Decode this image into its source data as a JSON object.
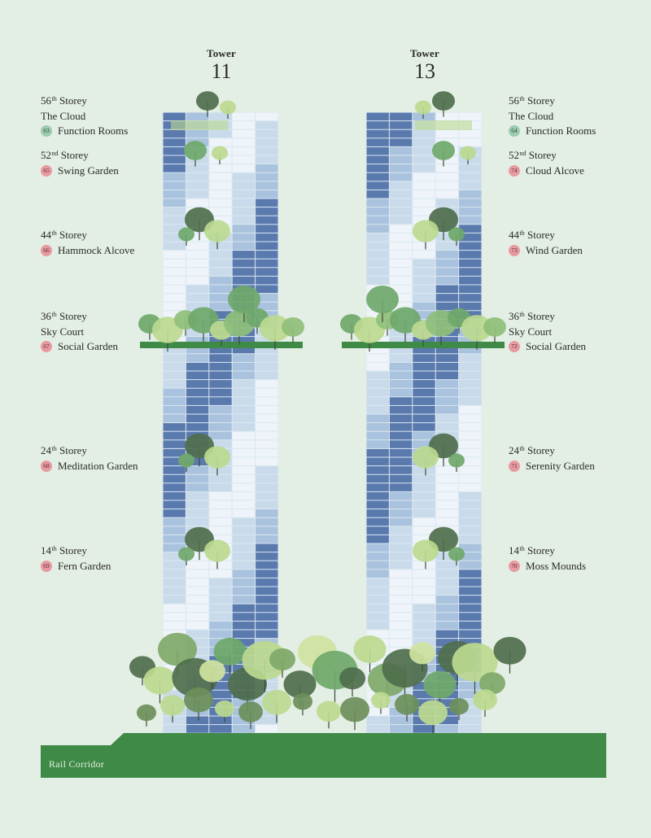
{
  "towers": {
    "left": {
      "label": "Tower",
      "number": "11"
    },
    "right": {
      "label": "Tower",
      "number": "13"
    }
  },
  "left_labels": [
    {
      "storey_num": "56",
      "storey_sup": "th",
      "storey_word": "Storey",
      "sub": "The Cloud",
      "badge": "63",
      "badge_color": "#9ccbb0",
      "name": "Function Rooms"
    },
    {
      "storey_num": "52",
      "storey_sup": "nd",
      "storey_word": "Storey",
      "sub": "",
      "badge": "65",
      "badge_color": "#e89aa3",
      "name": "Swing Garden"
    },
    {
      "storey_num": "44",
      "storey_sup": "th",
      "storey_word": "Storey",
      "sub": "",
      "badge": "66",
      "badge_color": "#e89aa3",
      "name": "Hammock Alcove"
    },
    {
      "storey_num": "36",
      "storey_sup": "th",
      "storey_word": "Storey",
      "sub": "Sky Court",
      "badge": "67",
      "badge_color": "#e89aa3",
      "name": "Social Garden"
    },
    {
      "storey_num": "24",
      "storey_sup": "th",
      "storey_word": "Storey",
      "sub": "",
      "badge": "68",
      "badge_color": "#e89aa3",
      "name": "Meditation Garden"
    },
    {
      "storey_num": "14",
      "storey_sup": "th",
      "storey_word": "Storey",
      "sub": "",
      "badge": "69",
      "badge_color": "#e89aa3",
      "name": "Fern Garden"
    }
  ],
  "right_labels": [
    {
      "storey_num": "56",
      "storey_sup": "th",
      "storey_word": "Storey",
      "sub": "The Cloud",
      "badge": "64",
      "badge_color": "#9ccbb0",
      "name": "Function Rooms"
    },
    {
      "storey_num": "52",
      "storey_sup": "nd",
      "storey_word": "Storey",
      "sub": "",
      "badge": "74",
      "badge_color": "#e89aa3",
      "name": "Cloud Alcove"
    },
    {
      "storey_num": "44",
      "storey_sup": "th",
      "storey_word": "Storey",
      "sub": "",
      "badge": "73",
      "badge_color": "#e89aa3",
      "name": "Wind Garden"
    },
    {
      "storey_num": "36",
      "storey_sup": "th",
      "storey_word": "Storey",
      "sub": "Sky Court",
      "badge": "72",
      "badge_color": "#e89aa3",
      "name": "Social Garden"
    },
    {
      "storey_num": "24",
      "storey_sup": "th",
      "storey_word": "Storey",
      "sub": "",
      "badge": "71",
      "badge_color": "#e89aa3",
      "name": "Serenity Garden"
    },
    {
      "storey_num": "14",
      "storey_sup": "th",
      "storey_word": "Storey",
      "sub": "",
      "badge": "70",
      "badge_color": "#e89aa3",
      "name": "Moss Mounds"
    }
  ],
  "ground": {
    "label": "Rail Corridor"
  },
  "colors": {
    "background": "#e3eee4",
    "glass_light": "#c9dbea",
    "glass_dark": "#5a7aae",
    "ground": "#3f8a46",
    "tree_dark": "#4f6e4c",
    "tree_mid": "#6fa86a",
    "tree_light": "#bcd98f"
  }
}
